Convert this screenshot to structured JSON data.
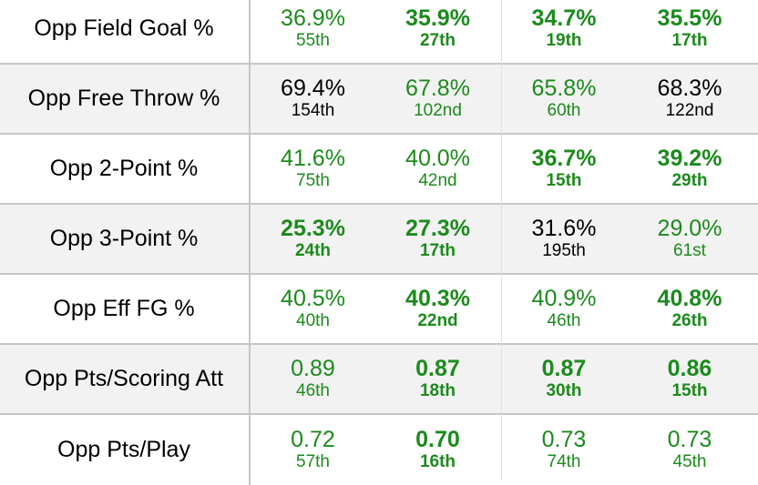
{
  "rows": [
    {
      "label": "Opp Field Goal %",
      "cells": [
        {
          "value": "36.9%",
          "rank": "55th",
          "style": "good"
        },
        {
          "value": "35.9%",
          "rank": "27th",
          "style": "good-bold"
        },
        {
          "value": "34.7%",
          "rank": "19th",
          "style": "good-bold"
        },
        {
          "value": "35.5%",
          "rank": "17th",
          "style": "good-bold"
        }
      ]
    },
    {
      "label": "Opp Free Throw %",
      "cells": [
        {
          "value": "69.4%",
          "rank": "154th",
          "style": "neutral"
        },
        {
          "value": "67.8%",
          "rank": "102nd",
          "style": "good"
        },
        {
          "value": "65.8%",
          "rank": "60th",
          "style": "good"
        },
        {
          "value": "68.3%",
          "rank": "122nd",
          "style": "neutral"
        }
      ]
    },
    {
      "label": "Opp 2-Point %",
      "cells": [
        {
          "value": "41.6%",
          "rank": "75th",
          "style": "good"
        },
        {
          "value": "40.0%",
          "rank": "42nd",
          "style": "good"
        },
        {
          "value": "36.7%",
          "rank": "15th",
          "style": "good-bold"
        },
        {
          "value": "39.2%",
          "rank": "29th",
          "style": "good-bold"
        }
      ]
    },
    {
      "label": "Opp 3-Point %",
      "cells": [
        {
          "value": "25.3%",
          "rank": "24th",
          "style": "good-bold"
        },
        {
          "value": "27.3%",
          "rank": "17th",
          "style": "good-bold"
        },
        {
          "value": "31.6%",
          "rank": "195th",
          "style": "neutral"
        },
        {
          "value": "29.0%",
          "rank": "61st",
          "style": "good"
        }
      ]
    },
    {
      "label": "Opp Eff FG %",
      "cells": [
        {
          "value": "40.5%",
          "rank": "40th",
          "style": "good"
        },
        {
          "value": "40.3%",
          "rank": "22nd",
          "style": "good-bold"
        },
        {
          "value": "40.9%",
          "rank": "46th",
          "style": "good"
        },
        {
          "value": "40.8%",
          "rank": "26th",
          "style": "good-bold"
        }
      ]
    },
    {
      "label": "Opp Pts/Scoring Att",
      "cells": [
        {
          "value": "0.89",
          "rank": "46th",
          "style": "good"
        },
        {
          "value": "0.87",
          "rank": "18th",
          "style": "good-bold"
        },
        {
          "value": "0.87",
          "rank": "30th",
          "style": "good-bold"
        },
        {
          "value": "0.86",
          "rank": "15th",
          "style": "good-bold"
        }
      ]
    },
    {
      "label": "Opp Pts/Play",
      "cells": [
        {
          "value": "0.72",
          "rank": "57th",
          "style": "good"
        },
        {
          "value": "0.70",
          "rank": "16th",
          "style": "good-bold"
        },
        {
          "value": "0.73",
          "rank": "74th",
          "style": "good"
        },
        {
          "value": "0.73",
          "rank": "45th",
          "style": "good"
        }
      ]
    }
  ],
  "colors": {
    "good": "#1c8a1c",
    "neutral": "#000000",
    "shaded_row": "#f2f2f2",
    "grid": "#c6c6c6"
  }
}
